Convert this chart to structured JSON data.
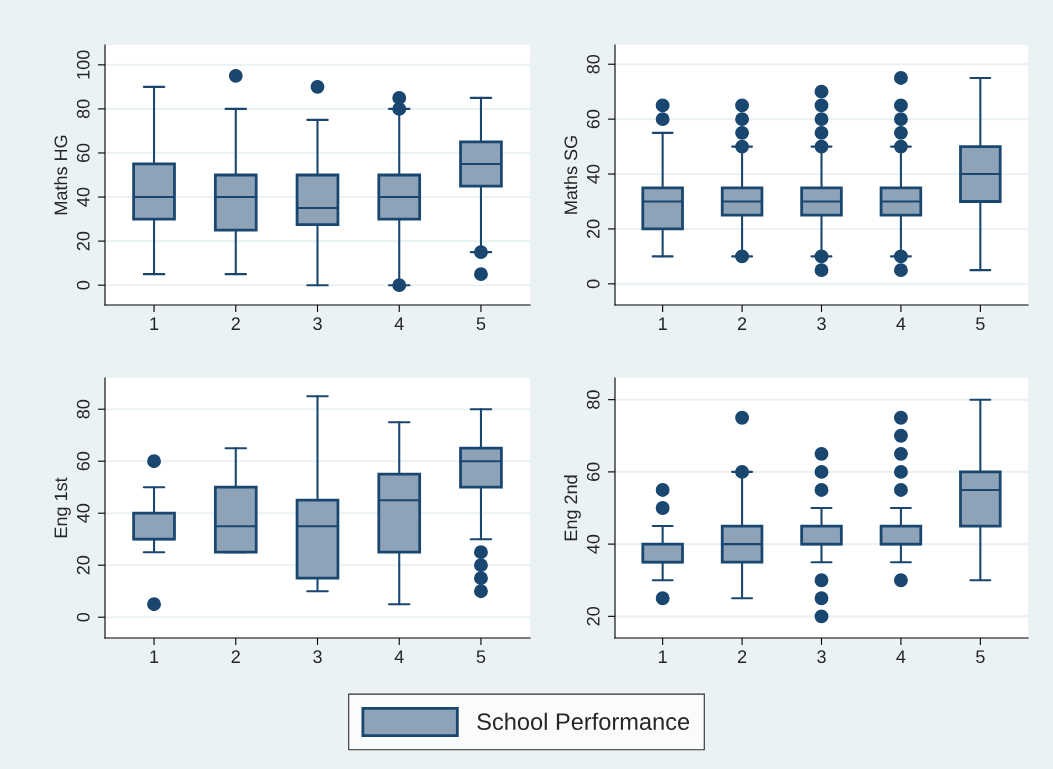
{
  "chart_data": [
    {
      "type": "box",
      "ylabel": "Maths HG",
      "categories": [
        "1",
        "2",
        "3",
        "4",
        "5"
      ],
      "ylim": [
        -9,
        109
      ],
      "yticks": [
        0,
        20,
        40,
        60,
        80,
        100
      ],
      "grid": "y",
      "legend": "bottom",
      "series": [
        {
          "name": "School Performance",
          "color": "#8fa3b8",
          "boxes": [
            {
              "low": 5,
              "q1": 30,
              "median": 40,
              "q3": 55,
              "high": 90
            },
            {
              "low": 5,
              "q1": 25,
              "median": 40,
              "q3": 50,
              "high": 80,
              "outliers": [
                95
              ]
            },
            {
              "low": 0,
              "q1": 27.5,
              "median": 35,
              "q3": 50,
              "high": 75,
              "outliers": [
                90
              ]
            },
            {
              "low": 0,
              "q1": 30,
              "median": 40,
              "q3": 50,
              "high": 80,
              "outliers": [
                0,
                80,
                85
              ]
            },
            {
              "low": 15,
              "q1": 45,
              "median": 55,
              "q3": 65,
              "high": 85,
              "outliers": [
                5,
                15
              ]
            }
          ]
        }
      ]
    },
    {
      "type": "box",
      "ylabel": "Maths SG",
      "categories": [
        "1",
        "2",
        "3",
        "4",
        "5"
      ],
      "ylim": [
        -7.7,
        87
      ],
      "yticks": [
        0,
        20,
        40,
        60,
        80
      ],
      "grid": "y",
      "legend": "bottom",
      "series": [
        {
          "name": "School Performance",
          "color": "#8fa3b8",
          "boxes": [
            {
              "low": 10,
              "q1": 20,
              "median": 30,
              "q3": 35,
              "high": 55,
              "outliers": [
                60,
                65
              ]
            },
            {
              "low": 10,
              "q1": 25,
              "median": 30,
              "q3": 35,
              "high": 50,
              "outliers": [
                10,
                50,
                55,
                60,
                65
              ]
            },
            {
              "low": 10,
              "q1": 25,
              "median": 30,
              "q3": 35,
              "high": 50,
              "outliers": [
                5,
                10,
                50,
                55,
                60,
                65,
                70
              ]
            },
            {
              "low": 10,
              "q1": 25,
              "median": 30,
              "q3": 35,
              "high": 50,
              "outliers": [
                5,
                10,
                50,
                55,
                60,
                65,
                75
              ]
            },
            {
              "low": 5,
              "q1": 30,
              "median": 40,
              "q3": 50,
              "high": 75
            }
          ]
        }
      ]
    },
    {
      "type": "box",
      "ylabel": "Eng 1st",
      "categories": [
        "1",
        "2",
        "3",
        "4",
        "5"
      ],
      "ylim": [
        -8,
        92
      ],
      "yticks": [
        0,
        20,
        40,
        60,
        80
      ],
      "grid": "y",
      "legend": "bottom",
      "series": [
        {
          "name": "School Performance",
          "color": "#8fa3b8",
          "boxes": [
            {
              "low": 25,
              "q1": 30,
              "median": 30,
              "q3": 40,
              "high": 50,
              "outliers": [
                5,
                60
              ]
            },
            {
              "low": 25,
              "q1": 25,
              "median": 35,
              "q3": 50,
              "high": 65
            },
            {
              "low": 10,
              "q1": 15,
              "median": 35,
              "q3": 45,
              "high": 85
            },
            {
              "low": 5,
              "q1": 25,
              "median": 45,
              "q3": 55,
              "high": 75
            },
            {
              "low": 30,
              "q1": 50,
              "median": 60,
              "q3": 65,
              "high": 80,
              "outliers": [
                10,
                15,
                20,
                25
              ]
            }
          ]
        }
      ]
    },
    {
      "type": "box",
      "ylabel": "Eng 2nd",
      "categories": [
        "1",
        "2",
        "3",
        "4",
        "5"
      ],
      "ylim": [
        14,
        86
      ],
      "yticks": [
        20,
        40,
        60,
        80
      ],
      "grid": "y",
      "legend": "bottom",
      "series": [
        {
          "name": "School Performance",
          "color": "#8fa3b8",
          "boxes": [
            {
              "low": 30,
              "q1": 35,
              "median": 35,
              "q3": 40,
              "high": 45,
              "outliers": [
                25,
                50,
                55
              ]
            },
            {
              "low": 25,
              "q1": 35,
              "median": 40,
              "q3": 45,
              "high": 60,
              "outliers": [
                60,
                75
              ]
            },
            {
              "low": 35,
              "q1": 40,
              "median": 40,
              "q3": 45,
              "high": 50,
              "outliers": [
                20,
                25,
                30,
                55,
                60,
                65
              ]
            },
            {
              "low": 35,
              "q1": 40,
              "median": 40,
              "q3": 45,
              "high": 50,
              "outliers": [
                30,
                55,
                60,
                65,
                70,
                75
              ]
            },
            {
              "low": 30,
              "q1": 45,
              "median": 55,
              "q3": 60,
              "high": 80
            }
          ]
        }
      ]
    }
  ]
}
